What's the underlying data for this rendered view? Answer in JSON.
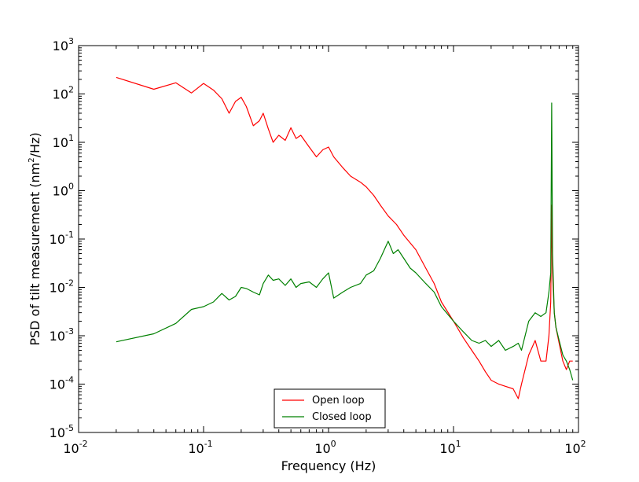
{
  "chart_data": {
    "type": "line",
    "title": "",
    "xlabel": "Frequency (Hz)",
    "ylabel_prefix": "PSD of tilt measurement (nm",
    "ylabel_sup": "2",
    "ylabel_suffix": "/Hz)",
    "xscale": "log",
    "yscale": "log",
    "xlim": [
      0.01,
      100
    ],
    "ylim": [
      1e-05,
      1000
    ],
    "x_ticks": [
      {
        "value": 0.01,
        "base": "10",
        "exp": "-2"
      },
      {
        "value": 0.1,
        "base": "10",
        "exp": "-1"
      },
      {
        "value": 1,
        "base": "10",
        "exp": "0"
      },
      {
        "value": 10,
        "base": "10",
        "exp": "1"
      },
      {
        "value": 100,
        "base": "10",
        "exp": "2"
      }
    ],
    "y_ticks": [
      {
        "value": 1e-05,
        "base": "10",
        "exp": "-5"
      },
      {
        "value": 0.0001,
        "base": "10",
        "exp": "-4"
      },
      {
        "value": 0.001,
        "base": "10",
        "exp": "-3"
      },
      {
        "value": 0.01,
        "base": "10",
        "exp": "-2"
      },
      {
        "value": 0.1,
        "base": "10",
        "exp": "-1"
      },
      {
        "value": 1,
        "base": "10",
        "exp": "0"
      },
      {
        "value": 10,
        "base": "10",
        "exp": "1"
      },
      {
        "value": 100,
        "base": "10",
        "exp": "2"
      },
      {
        "value": 1000,
        "base": "10",
        "exp": "3"
      }
    ],
    "legend_position": "bottom-center",
    "series": [
      {
        "name": "Open loop",
        "color": "#ff0000",
        "x": [
          0.02,
          0.04,
          0.06,
          0.08,
          0.1,
          0.12,
          0.14,
          0.16,
          0.18,
          0.2,
          0.22,
          0.25,
          0.28,
          0.3,
          0.33,
          0.36,
          0.4,
          0.45,
          0.5,
          0.55,
          0.6,
          0.7,
          0.8,
          0.9,
          1.0,
          1.1,
          1.3,
          1.5,
          1.8,
          2.0,
          2.3,
          2.6,
          3.0,
          3.5,
          4.0,
          5.0,
          6.0,
          7.0,
          8.0,
          10,
          12,
          14,
          16,
          18,
          20,
          23,
          26,
          30,
          33,
          35,
          40,
          45,
          50,
          55,
          58,
          60,
          61,
          62,
          64,
          66,
          70,
          75,
          80,
          85,
          90
        ],
        "y": [
          220,
          125,
          170,
          105,
          165,
          120,
          80,
          40,
          70,
          85,
          55,
          22,
          28,
          40,
          19,
          10,
          14,
          11,
          20,
          12,
          14,
          8,
          5,
          7,
          8,
          5,
          3,
          2,
          1.5,
          1.2,
          0.8,
          0.5,
          0.3,
          0.2,
          0.12,
          0.06,
          0.025,
          0.012,
          0.005,
          0.002,
          0.0009,
          0.0005,
          0.0003,
          0.00018,
          0.00012,
          0.0001,
          9e-05,
          8e-05,
          5e-05,
          0.0001,
          0.0004,
          0.0008,
          0.0003,
          0.0003,
          0.001,
          0.005,
          0.5,
          0.02,
          0.003,
          0.0015,
          0.0007,
          0.0003,
          0.0002,
          0.0003,
          0.0003
        ]
      },
      {
        "name": "Closed loop",
        "color": "#008000",
        "x": [
          0.02,
          0.04,
          0.06,
          0.08,
          0.1,
          0.12,
          0.14,
          0.16,
          0.18,
          0.2,
          0.22,
          0.25,
          0.28,
          0.3,
          0.33,
          0.36,
          0.4,
          0.45,
          0.5,
          0.55,
          0.6,
          0.7,
          0.8,
          0.9,
          1.0,
          1.1,
          1.3,
          1.5,
          1.8,
          2.0,
          2.3,
          2.6,
          3.0,
          3.3,
          3.6,
          4.0,
          4.5,
          5.0,
          6.0,
          7.0,
          8.0,
          10,
          12,
          14,
          16,
          18,
          20,
          23,
          26,
          30,
          33,
          35,
          40,
          45,
          50,
          55,
          58,
          60,
          61,
          62,
          64,
          66,
          70,
          75,
          80,
          85,
          90
        ],
        "y": [
          0.00075,
          0.0011,
          0.0018,
          0.0035,
          0.004,
          0.005,
          0.0075,
          0.0055,
          0.0065,
          0.01,
          0.0095,
          0.008,
          0.007,
          0.012,
          0.018,
          0.014,
          0.015,
          0.011,
          0.015,
          0.01,
          0.012,
          0.013,
          0.01,
          0.015,
          0.02,
          0.006,
          0.008,
          0.01,
          0.012,
          0.018,
          0.022,
          0.04,
          0.09,
          0.05,
          0.06,
          0.04,
          0.025,
          0.02,
          0.012,
          0.008,
          0.004,
          0.002,
          0.0012,
          0.0008,
          0.0007,
          0.0008,
          0.0006,
          0.0008,
          0.0005,
          0.0006,
          0.0007,
          0.0005,
          0.002,
          0.003,
          0.0025,
          0.003,
          0.008,
          0.02,
          65,
          0.05,
          0.003,
          0.0015,
          0.0008,
          0.0004,
          0.0003,
          0.0002,
          0.00012
        ]
      }
    ]
  }
}
